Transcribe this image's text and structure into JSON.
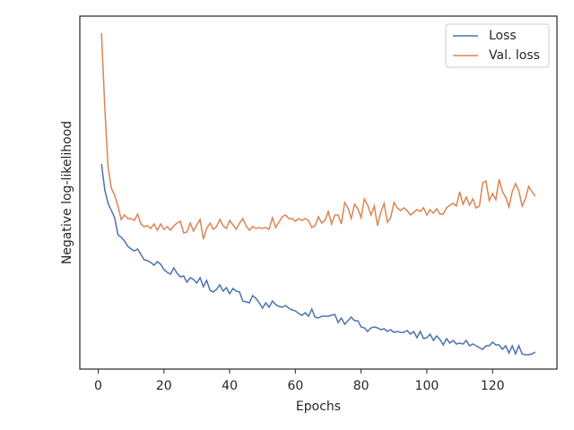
{
  "chart_data": {
    "type": "line",
    "xlabel": "Epochs",
    "ylabel": "Negative log-likelihood",
    "x": [
      1,
      2,
      3,
      4,
      5,
      6,
      7,
      8,
      9,
      10,
      11,
      12,
      13,
      14,
      15,
      16,
      17,
      18,
      19,
      20,
      21,
      22,
      23,
      24,
      25,
      26,
      27,
      28,
      29,
      30,
      31,
      32,
      33,
      34,
      35,
      36,
      37,
      38,
      39,
      40,
      41,
      42,
      43,
      44,
      45,
      46,
      47,
      48,
      49,
      50,
      51,
      52,
      53,
      54,
      55,
      56,
      57,
      58,
      59,
      60,
      61,
      62,
      63,
      64,
      65,
      66,
      67,
      68,
      69,
      70,
      71,
      72,
      73,
      74,
      75,
      76,
      77,
      78,
      79,
      80,
      81,
      82,
      83,
      84,
      85,
      86,
      87,
      88,
      89,
      90,
      91,
      92,
      93,
      94,
      95,
      96,
      97,
      98,
      99,
      100,
      101,
      102,
      103,
      104,
      105,
      106,
      107,
      108,
      109,
      110,
      111,
      112,
      113,
      114,
      115,
      116,
      117,
      118,
      119,
      120,
      121,
      122,
      123,
      124,
      125,
      126,
      127,
      128,
      129,
      130,
      131,
      132,
      133
    ],
    "series": [
      {
        "name": "Loss",
        "color": "#4c72b0",
        "values": [
          229,
          200,
          185,
          177,
          169,
          150,
          147,
          143,
          137,
          134,
          132,
          134,
          128,
          122,
          121,
          119,
          116,
          120,
          117,
          111,
          108,
          106,
          113,
          107,
          103,
          104,
          97,
          102,
          100,
          96,
          102,
          92,
          99,
          88,
          86,
          89,
          94,
          87,
          91,
          84,
          90,
          87,
          86,
          76,
          75,
          74,
          82,
          79,
          74,
          68,
          74,
          69,
          76,
          72,
          70,
          69,
          71,
          68,
          66,
          65,
          62,
          60,
          63,
          59,
          67,
          58,
          57,
          59,
          59,
          59,
          60,
          61,
          52,
          57,
          50,
          54,
          58,
          54,
          54,
          47,
          46,
          42,
          46,
          47,
          46,
          44,
          45,
          42,
          44,
          41,
          42,
          41,
          41,
          43,
          39,
          42,
          35,
          42,
          34,
          35,
          39,
          32,
          37,
          33,
          27,
          34,
          29,
          32,
          28,
          29,
          28,
          32,
          26,
          28,
          26,
          24,
          22,
          26,
          26,
          30,
          27,
          27,
          22,
          26,
          18,
          26,
          17,
          26,
          17,
          16,
          16,
          17,
          19
        ]
      },
      {
        "name": "Val. loss",
        "color": "#dd8452",
        "values": [
          375,
          292,
          225,
          202,
          194,
          182,
          167,
          172,
          168,
          168,
          166,
          173,
          162,
          159,
          160,
          157,
          162,
          155,
          162,
          156,
          159,
          155,
          160,
          163,
          165,
          152,
          153,
          163,
          154,
          161,
          167,
          145,
          157,
          163,
          156,
          159,
          167,
          160,
          157,
          166,
          161,
          156,
          163,
          168,
          160,
          155,
          159,
          157,
          158,
          157,
          158,
          156,
          169,
          158,
          164,
          170,
          172,
          168,
          168,
          165,
          168,
          166,
          168,
          166,
          158,
          160,
          170,
          163,
          166,
          176,
          162,
          172,
          172,
          162,
          186,
          180,
          168,
          184,
          179,
          169,
          190,
          183,
          172,
          182,
          160,
          175,
          185,
          164,
          169,
          186,
          180,
          177,
          180,
          177,
          172,
          175,
          178,
          176,
          180,
          172,
          178,
          174,
          179,
          173,
          173,
          180,
          183,
          185,
          182,
          198,
          184,
          192,
          183,
          190,
          180,
          182,
          208,
          210,
          188,
          196,
          189,
          212,
          198,
          192,
          181,
          198,
          207,
          199,
          182,
          190,
          204,
          198,
          193
        ]
      }
    ],
    "xlim": [
      -5.6,
      139.6
    ],
    "xticks": [
      0,
      20,
      40,
      60,
      80,
      100,
      120
    ],
    "ylim": [
      0,
      394
    ],
    "legend": "upper right"
  }
}
